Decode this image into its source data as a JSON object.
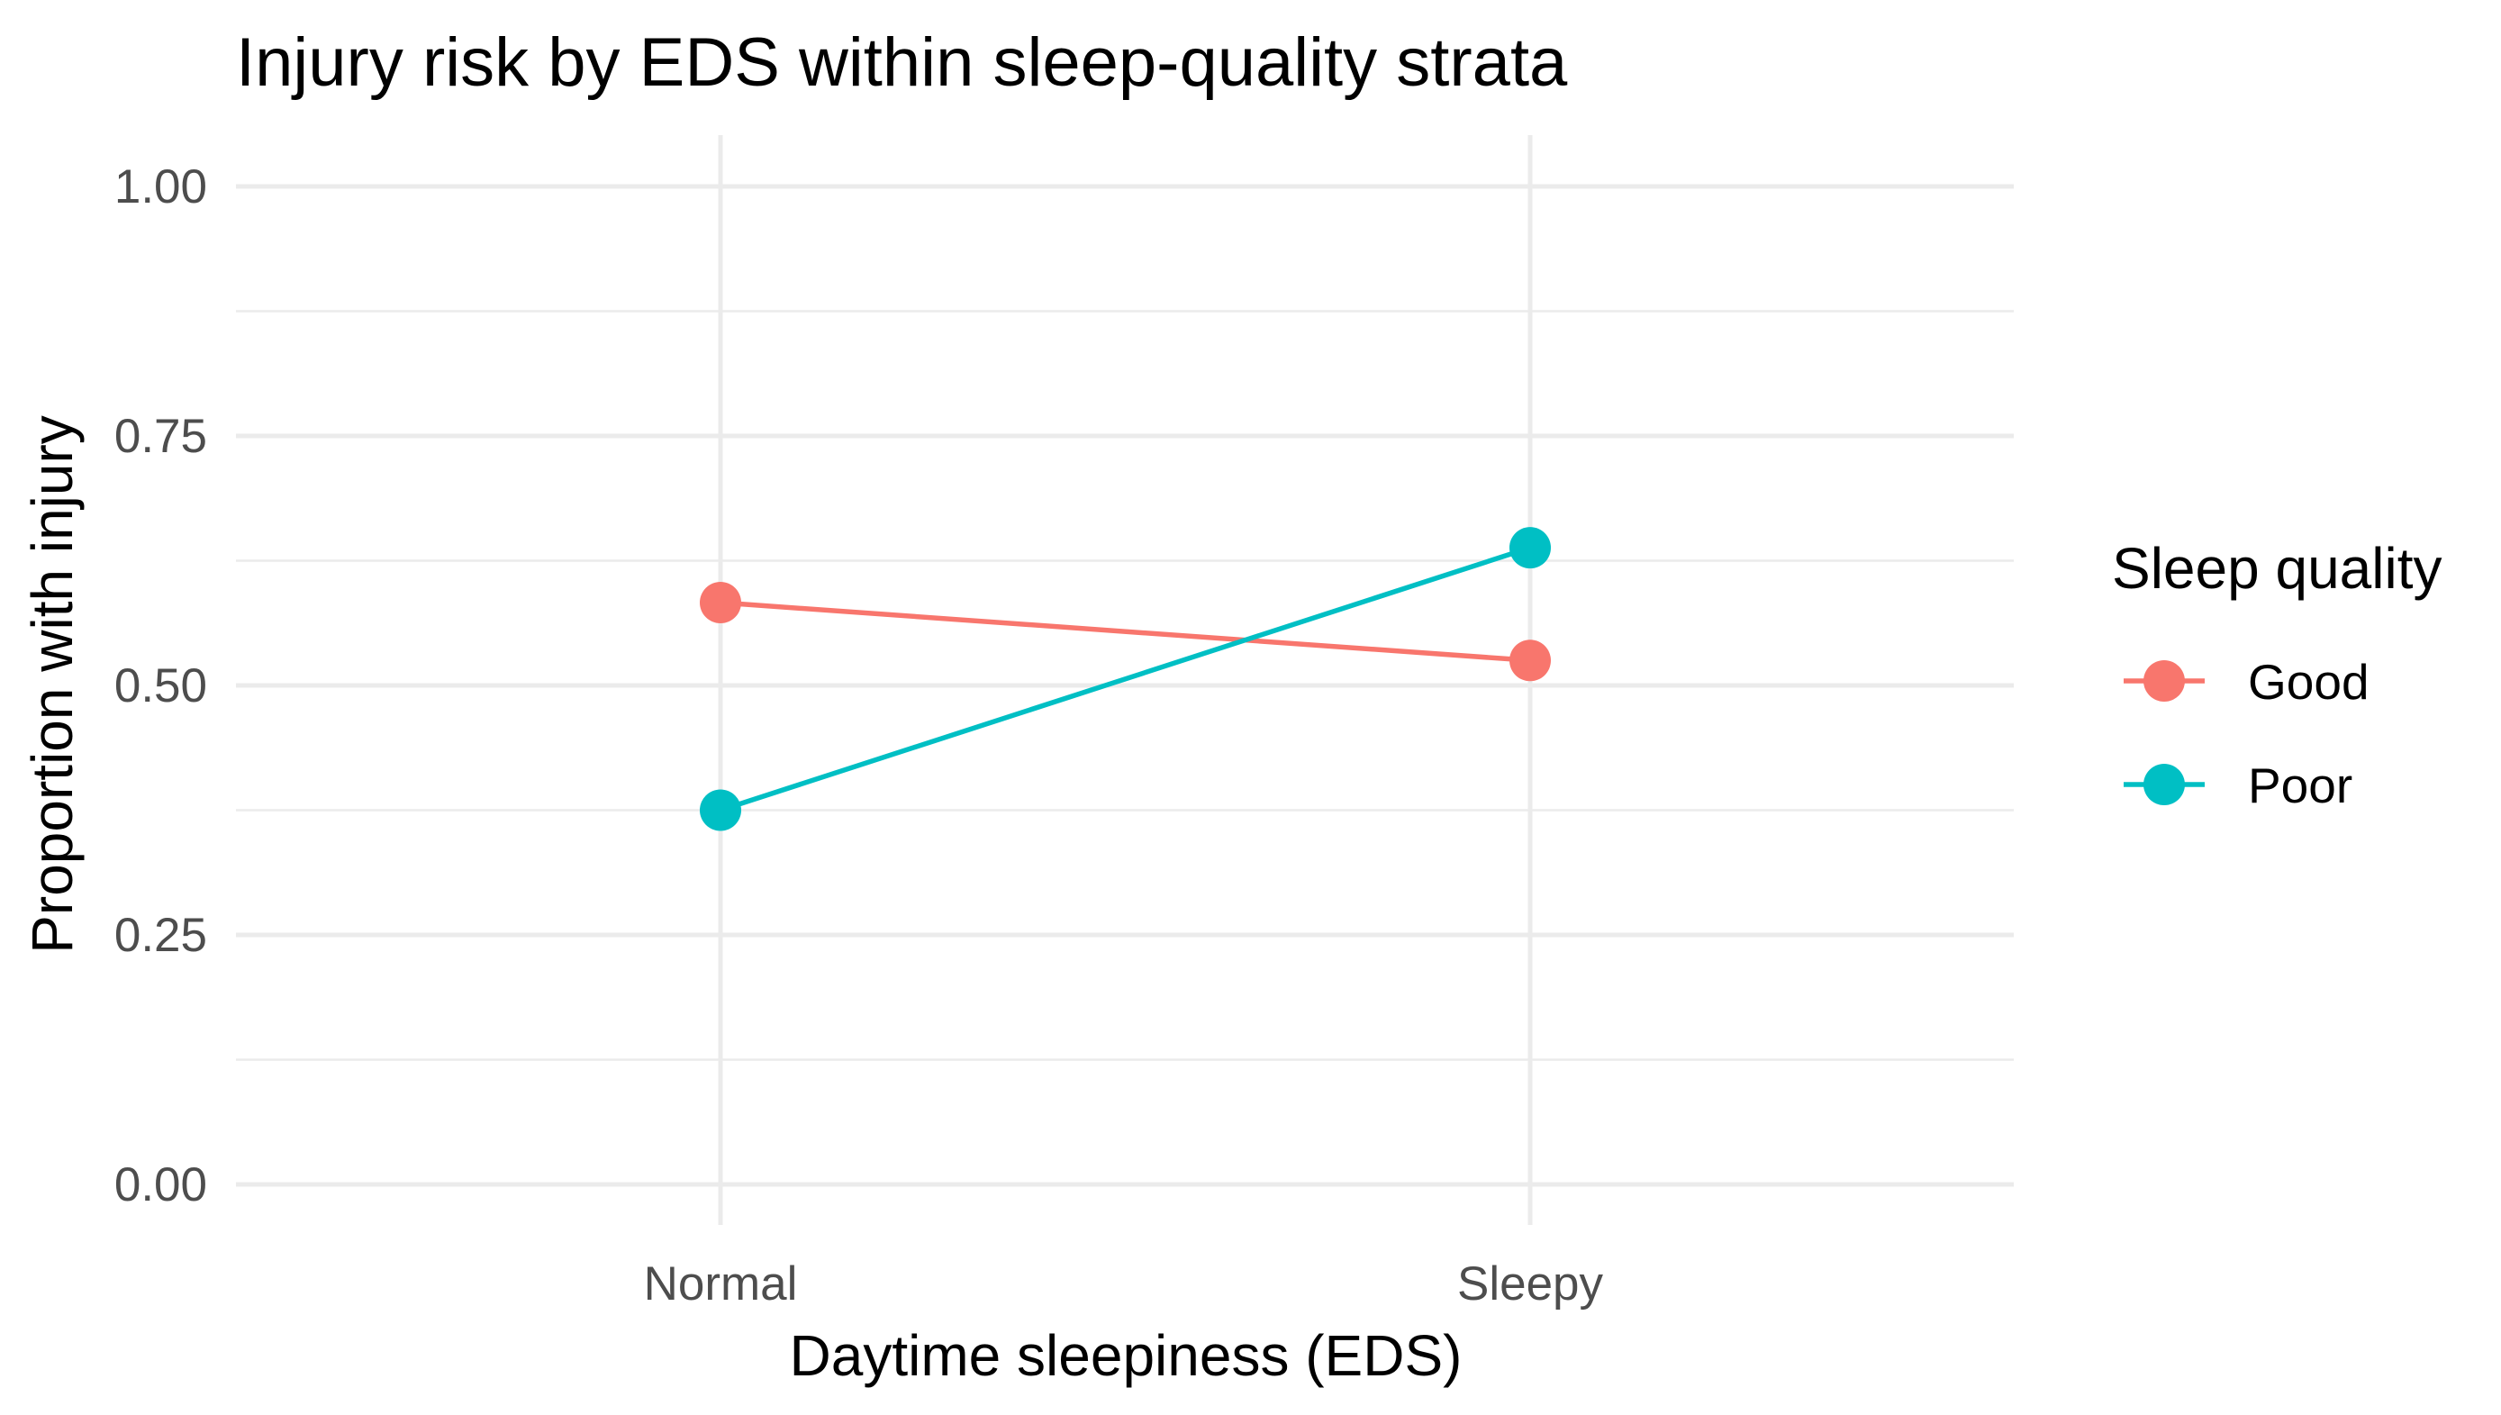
{
  "chart_data": {
    "type": "line",
    "title": "Injury risk by EDS within sleep-quality strata",
    "xlabel": "Daytime sleepiness (EDS)",
    "ylabel": "Proportion with injury",
    "categories": [
      "Normal",
      "Sleepy"
    ],
    "ylim": [
      0,
      1
    ],
    "yticks": [
      0.0,
      0.25,
      0.5,
      0.75,
      1.0
    ],
    "ytick_labels": [
      "0.00",
      "0.25",
      "0.50",
      "0.75",
      "1.00"
    ],
    "grid": true,
    "legend": {
      "title": "Sleep quality",
      "placement": "right"
    },
    "series": [
      {
        "name": "Good",
        "color": "#F8766D",
        "values": [
          0.583,
          0.525
        ]
      },
      {
        "name": "Poor",
        "color": "#00BFC4",
        "values": [
          0.375,
          0.638
        ]
      }
    ]
  }
}
